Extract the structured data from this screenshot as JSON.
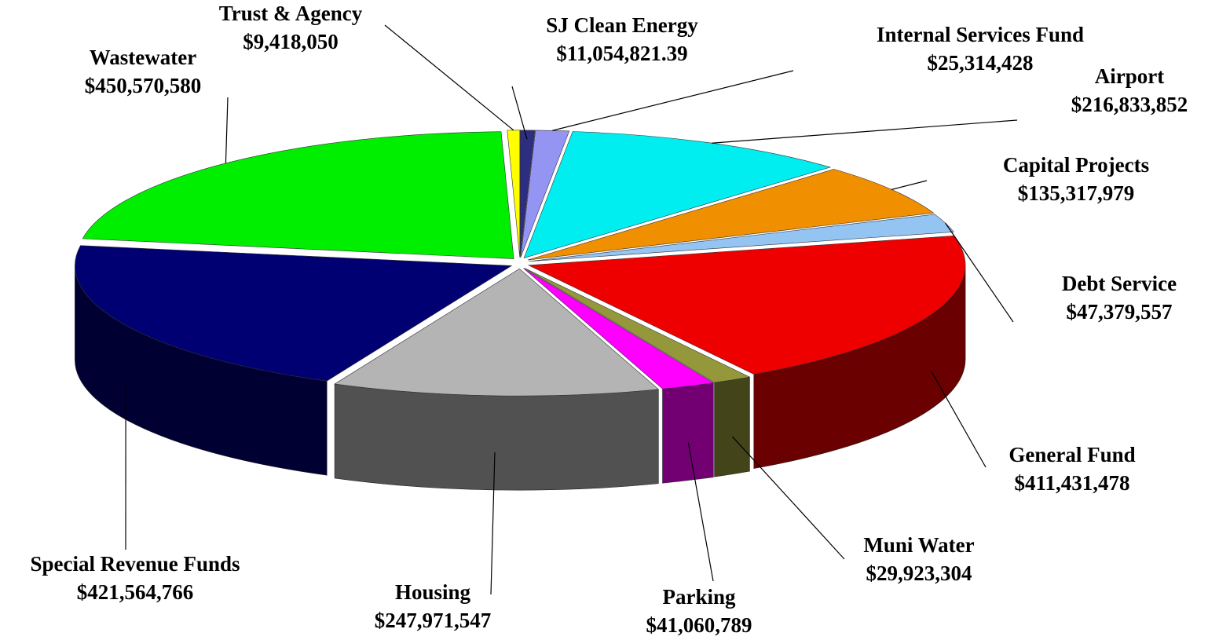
{
  "chart_data": {
    "type": "pie",
    "categories": [
      "SJ Clean Energy",
      "Internal Services Fund",
      "Airport",
      "Capital Projects",
      "Debt Service",
      "General Fund",
      "Muni Water",
      "Parking",
      "Housing",
      "Special Revenue Funds",
      "Wastewater",
      "Trust & Agency"
    ],
    "values": [
      11054821.39,
      25314428,
      216833852,
      135317979,
      47379557,
      411431478,
      29923304,
      41060789,
      247971547,
      421564766,
      450570580,
      9418050
    ],
    "value_labels": [
      "$11,054,821.39",
      "$25,314,428",
      "$216,833,852",
      "$135,317,979",
      "$47,379,557",
      "$411,431,478",
      "$29,923,304",
      "$41,060,789",
      "$247,971,547",
      "$421,564,766",
      "$450,570,580",
      "$9,418,050"
    ],
    "colors": [
      "#2e2e80",
      "#9494f2",
      "#00eef0",
      "#f09000",
      "#94c4f2",
      "#ee0000",
      "#94983a",
      "#ff00ff",
      "#b4b4b4",
      "#000072",
      "#00ee00",
      "#ffff00"
    ]
  }
}
